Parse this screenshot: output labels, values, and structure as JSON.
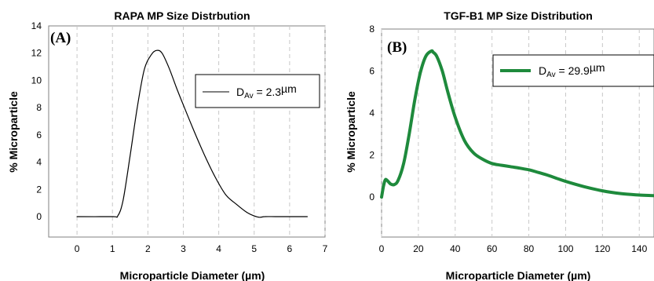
{
  "chart_data": [
    {
      "type": "line",
      "title": "RAPA MP Size Distrbution",
      "panel_label": "(A)",
      "xlabel": "Microparticle Diameter (µm)",
      "ylabel": "% Microparticle",
      "xlim": [
        -0.8,
        7
      ],
      "ylim": [
        -1.5,
        14
      ],
      "xticks": [
        0,
        1,
        2,
        3,
        4,
        5,
        6,
        7
      ],
      "yticks": [
        0,
        2,
        4,
        6,
        8,
        10,
        12,
        14
      ],
      "grid": "vertical",
      "legend": {
        "position": "right",
        "prefix": "D",
        "sub": "Av",
        "value": " = 2.3",
        "unit": "µm"
      },
      "series": [
        {
          "color": "#000000",
          "x": [
            0,
            1.0,
            1.15,
            1.3,
            1.5,
            1.7,
            1.9,
            2.1,
            2.25,
            2.4,
            2.6,
            2.8,
            3.0,
            3.3,
            3.6,
            3.9,
            4.2,
            4.5,
            4.8,
            5.0,
            5.15,
            5.3,
            5.6,
            6.0,
            6.5
          ],
          "y": [
            0,
            0,
            0.05,
            1.2,
            4.5,
            8.0,
            10.8,
            11.9,
            12.2,
            12.0,
            10.9,
            9.5,
            8.2,
            6.3,
            4.5,
            2.9,
            1.6,
            0.9,
            0.3,
            0.05,
            -0.05,
            0.0,
            0.0,
            0.0,
            0.0
          ]
        }
      ]
    },
    {
      "type": "line",
      "title": "TGF-B1 MP Size Distribution",
      "panel_label": "(B)",
      "xlabel": "Microparticle Diameter (µm)",
      "ylabel": "% Microparticle",
      "xlim": [
        0,
        148
      ],
      "ylim": [
        -1.9,
        8
      ],
      "xticks": [
        0,
        20,
        40,
        60,
        80,
        100,
        120,
        140
      ],
      "yticks": [
        0,
        2,
        4,
        6,
        8
      ],
      "grid": "vertical",
      "legend": {
        "position": "top-right",
        "prefix": "D",
        "sub": "Av",
        "value": " = 29.9",
        "unit": "µm"
      },
      "series": [
        {
          "color": "#1e8a3c",
          "x": [
            0,
            1,
            2,
            3,
            5,
            7,
            9,
            12,
            15,
            18,
            21,
            24,
            27,
            28,
            30,
            33,
            36,
            40,
            45,
            50,
            55,
            60,
            65,
            70,
            75,
            80,
            85,
            90,
            95,
            100,
            110,
            120,
            130,
            140,
            148
          ],
          "y": [
            0.0,
            0.5,
            0.82,
            0.8,
            0.62,
            0.6,
            0.8,
            1.6,
            3.0,
            4.6,
            5.9,
            6.7,
            6.95,
            6.9,
            6.7,
            6.0,
            5.0,
            3.8,
            2.7,
            2.1,
            1.8,
            1.6,
            1.52,
            1.45,
            1.38,
            1.3,
            1.18,
            1.05,
            0.9,
            0.75,
            0.5,
            0.3,
            0.17,
            0.1,
            0.07
          ]
        }
      ]
    }
  ]
}
